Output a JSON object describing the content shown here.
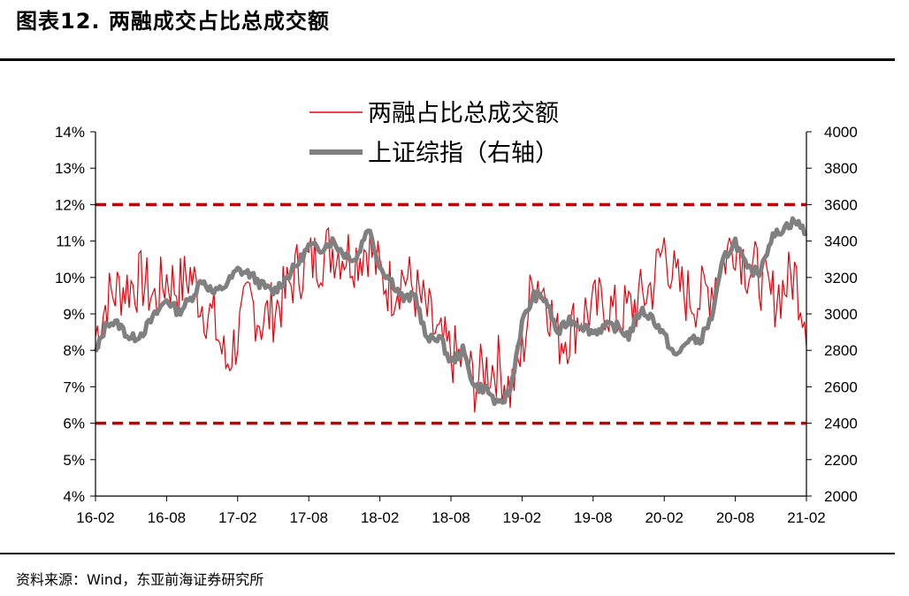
{
  "figure_title": "图表12. 两融成交占比总成交额",
  "source": "资料来源：Wind，东亚前海证券研究所",
  "colors": {
    "ratio_line": "#e8000b",
    "index_line": "#808080",
    "dashed_lines": "#c00000",
    "axis": "#000000"
  },
  "chart_data": {
    "type": "line",
    "title": "",
    "xlabel": "",
    "ylabel_left": "",
    "ylabel_right": "",
    "x_tick_labels": [
      "16-02",
      "16-08",
      "17-02",
      "17-08",
      "18-02",
      "18-08",
      "19-02",
      "19-08",
      "20-02",
      "20-08",
      "21-02"
    ],
    "y_left_ticks": [
      "4%",
      "5%",
      "6%",
      "7%",
      "8%",
      "9%",
      "10%",
      "11%",
      "12%",
      "13%",
      "14%"
    ],
    "y_right_ticks": [
      "2000",
      "2200",
      "2400",
      "2600",
      "2800",
      "3000",
      "3200",
      "3400",
      "3600",
      "3800",
      "4000"
    ],
    "ylim_left": [
      0.04,
      0.14
    ],
    "ylim_right": [
      2000,
      4000
    ],
    "xlim": [
      "2016-02",
      "2021-02"
    ],
    "legend_position": "top-center",
    "grid": false,
    "reference_lines": [
      {
        "axis": "left",
        "value": 0.12,
        "style": "dashed"
      },
      {
        "axis": "left",
        "value": 0.06,
        "style": "dashed"
      }
    ],
    "series": [
      {
        "name": "两融占比总成交额",
        "axis": "left",
        "x": [
          "2016-02",
          "2016-03",
          "2016-04",
          "2016-05",
          "2016-06",
          "2016-07",
          "2016-08",
          "2016-09",
          "2016-10",
          "2016-11",
          "2016-12",
          "2017-01",
          "2017-02",
          "2017-03",
          "2017-04",
          "2017-05",
          "2017-06",
          "2017-07",
          "2017-08",
          "2017-09",
          "2017-10",
          "2017-11",
          "2017-12",
          "2018-01",
          "2018-02",
          "2018-03",
          "2018-04",
          "2018-05",
          "2018-06",
          "2018-07",
          "2018-08",
          "2018-09",
          "2018-10",
          "2018-11",
          "2018-12",
          "2019-01",
          "2019-02",
          "2019-03",
          "2019-04",
          "2019-05",
          "2019-06",
          "2019-07",
          "2019-08",
          "2019-09",
          "2019-10",
          "2019-11",
          "2019-12",
          "2020-01",
          "2020-02",
          "2020-03",
          "2020-04",
          "2020-05",
          "2020-06",
          "2020-07",
          "2020-08",
          "2020-09",
          "2020-10",
          "2020-11",
          "2020-12",
          "2021-01",
          "2021-02"
        ],
        "values": [
          0.084,
          0.094,
          0.097,
          0.098,
          0.099,
          0.094,
          0.1,
          0.097,
          0.101,
          0.093,
          0.088,
          0.076,
          0.084,
          0.094,
          0.088,
          0.091,
          0.095,
          0.102,
          0.104,
          0.106,
          0.108,
          0.107,
          0.106,
          0.109,
          0.101,
          0.097,
          0.101,
          0.096,
          0.09,
          0.082,
          0.079,
          0.077,
          0.071,
          0.075,
          0.076,
          0.069,
          0.079,
          0.101,
          0.096,
          0.083,
          0.085,
          0.09,
          0.091,
          0.093,
          0.089,
          0.091,
          0.094,
          0.098,
          0.109,
          0.098,
          0.095,
          0.094,
          0.098,
          0.105,
          0.111,
          0.103,
          0.101,
          0.094,
          0.097,
          0.101,
          0.089
        ]
      },
      {
        "name": "上证综指（右轴）",
        "axis": "right",
        "x": [
          "2016-02",
          "2016-03",
          "2016-04",
          "2016-05",
          "2016-06",
          "2016-07",
          "2016-08",
          "2016-09",
          "2016-10",
          "2016-11",
          "2016-12",
          "2017-01",
          "2017-02",
          "2017-03",
          "2017-04",
          "2017-05",
          "2017-06",
          "2017-07",
          "2017-08",
          "2017-09",
          "2017-10",
          "2017-11",
          "2017-12",
          "2018-01",
          "2018-02",
          "2018-03",
          "2018-04",
          "2018-05",
          "2018-06",
          "2018-07",
          "2018-08",
          "2018-09",
          "2018-10",
          "2018-11",
          "2018-12",
          "2019-01",
          "2019-02",
          "2019-03",
          "2019-04",
          "2019-05",
          "2019-06",
          "2019-07",
          "2019-08",
          "2019-09",
          "2019-10",
          "2019-11",
          "2019-12",
          "2020-01",
          "2020-02",
          "2020-03",
          "2020-04",
          "2020-05",
          "2020-06",
          "2020-07",
          "2020-08",
          "2020-09",
          "2020-10",
          "2020-11",
          "2020-12",
          "2021-01",
          "2021-02"
        ],
        "values": [
          2780,
          2960,
          2940,
          2860,
          2900,
          2990,
          3080,
          3010,
          3080,
          3190,
          3110,
          3160,
          3240,
          3220,
          3160,
          3120,
          3190,
          3270,
          3370,
          3360,
          3400,
          3330,
          3300,
          3480,
          3260,
          3180,
          3080,
          3100,
          2850,
          2880,
          2730,
          2800,
          2600,
          2590,
          2490,
          2580,
          2950,
          3100,
          3080,
          2890,
          2970,
          2940,
          2900,
          2930,
          2930,
          2880,
          3020,
          2980,
          2880,
          2760,
          2860,
          2850,
          2980,
          3300,
          3400,
          3240,
          3230,
          3410,
          3470,
          3510,
          3450
        ]
      }
    ]
  }
}
